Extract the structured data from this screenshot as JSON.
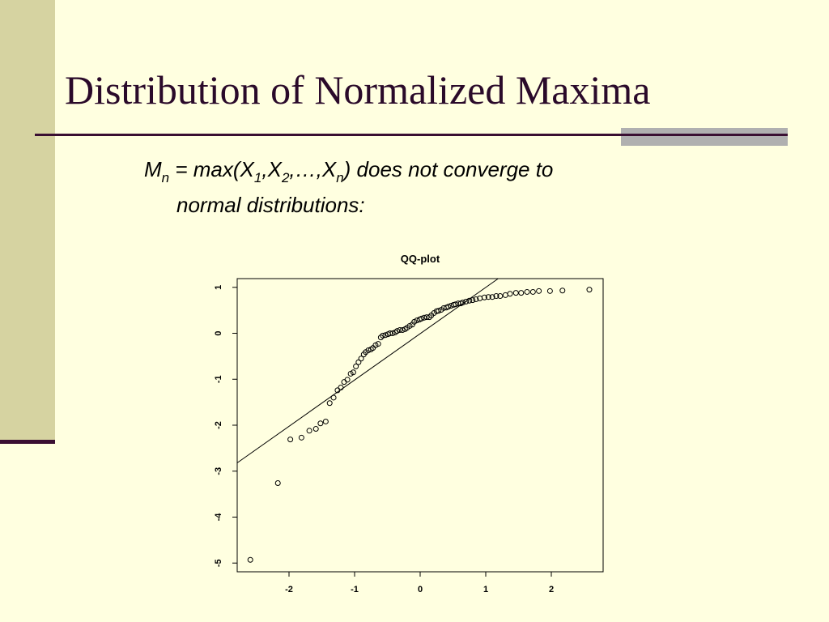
{
  "slide": {
    "title": "Distribution of Normalized Maxima",
    "text_parts": [
      "M",
      "n",
      " = max(X",
      "1",
      ",X",
      "2",
      ",…,X",
      "n",
      ") does not converge to",
      "normal distributions:"
    ]
  },
  "chart_data": {
    "type": "scatter",
    "title": "QQ-plot",
    "color": "#000000",
    "x": [
      -2.59,
      -2.17,
      -1.98,
      -1.81,
      -1.69,
      -1.59,
      -1.52,
      -1.44,
      -1.38,
      -1.32,
      -1.26,
      -1.21,
      -1.16,
      -1.11,
      -1.06,
      -1.02,
      -0.98,
      -0.94,
      -0.9,
      -0.86,
      -0.83,
      -0.79,
      -0.75,
      -0.72,
      -0.68,
      -0.64,
      -0.6,
      -0.57,
      -0.53,
      -0.49,
      -0.46,
      -0.42,
      -0.38,
      -0.35,
      -0.31,
      -0.27,
      -0.23,
      -0.2,
      -0.16,
      -0.12,
      -0.09,
      -0.05,
      -0.01,
      0.02,
      0.06,
      0.1,
      0.14,
      0.17,
      0.21,
      0.25,
      0.28,
      0.32,
      0.36,
      0.4,
      0.43,
      0.47,
      0.51,
      0.54,
      0.58,
      0.62,
      0.65,
      0.7,
      0.75,
      0.8,
      0.85,
      0.91,
      0.98,
      1.04,
      1.1,
      1.16,
      1.22,
      1.3,
      1.37,
      1.46,
      1.54,
      1.63,
      1.72,
      1.81,
      1.98,
      2.17,
      2.58
    ],
    "y": [
      -4.93,
      -3.26,
      -2.31,
      -2.27,
      -2.12,
      -2.08,
      -1.96,
      -1.92,
      -1.52,
      -1.4,
      -1.24,
      -1.18,
      -1.06,
      -1.01,
      -0.88,
      -0.85,
      -0.72,
      -0.63,
      -0.55,
      -0.46,
      -0.41,
      -0.37,
      -0.35,
      -0.32,
      -0.26,
      -0.23,
      -0.09,
      -0.05,
      -0.04,
      -0.02,
      0.0,
      0.0,
      0.02,
      0.05,
      0.07,
      0.07,
      0.09,
      0.12,
      0.16,
      0.19,
      0.25,
      0.28,
      0.3,
      0.32,
      0.34,
      0.35,
      0.35,
      0.39,
      0.44,
      0.48,
      0.49,
      0.51,
      0.55,
      0.56,
      0.58,
      0.6,
      0.62,
      0.63,
      0.65,
      0.65,
      0.67,
      0.69,
      0.71,
      0.72,
      0.74,
      0.76,
      0.78,
      0.79,
      0.79,
      0.81,
      0.81,
      0.83,
      0.86,
      0.88,
      0.88,
      0.9,
      0.9,
      0.92,
      0.92,
      0.93,
      0.95
    ],
    "reference_line": {
      "x": [
        -2.79,
        1.19
      ],
      "y": [
        -2.82,
        1.19
      ]
    },
    "xlim": [
      -2.79,
      2.79
    ],
    "ylim": [
      -5.19,
      1.19
    ],
    "xticks": [
      -2,
      -1,
      0,
      1,
      2
    ],
    "yticks": [
      -5,
      -4,
      -3,
      -2,
      -1,
      0,
      1
    ]
  }
}
